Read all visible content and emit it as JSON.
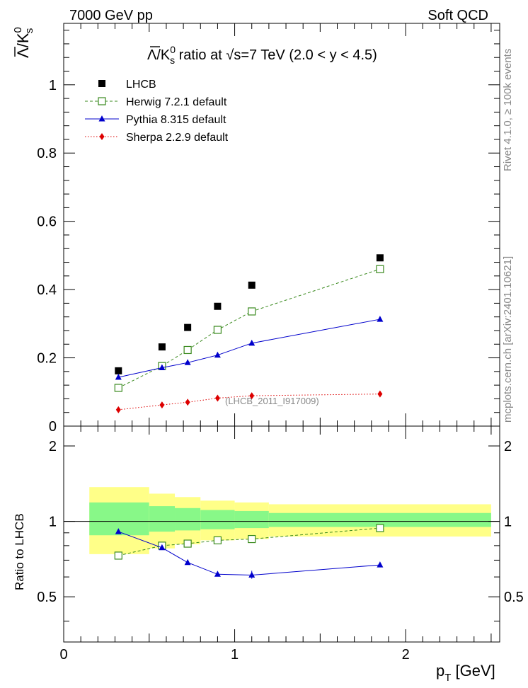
{
  "header": {
    "left": "7000 GeV pp",
    "right": "Soft QCD"
  },
  "side_labels": {
    "rivet": "Rivet 4.1.0, ≥ 100k events",
    "mcplots": "mcplots.cern.ch [arXiv:2401.10621]"
  },
  "analysis_id": "(LHCB_2011_I917009)",
  "chart_data": [
    {
      "type": "scatter",
      "panel": "main",
      "title": "Λ̅/K⁰ₛ ratio at √s=7 TeV (2.0 < y < 4.5)",
      "title_parts": {
        "lambda": "Λ",
        "slash_k": "/K",
        "sup": "0",
        "sub": "s",
        "rest": " ratio at ",
        "sqrt": "√",
        "energy": "s=7 TeV (2.0 < y < 4.5)"
      },
      "ylabel_parts": {
        "lambda": "Λ",
        "slash_k": "/K",
        "sup": "0",
        "sub": "s"
      },
      "xlabel": "",
      "xlim": [
        0,
        2.55
      ],
      "ylim": [
        0,
        1.18
      ],
      "yticks": [
        0,
        0.2,
        0.4,
        0.6,
        0.8,
        1
      ],
      "yticklabels": [
        "0",
        "0.2",
        "0.4",
        "0.6",
        "0.8",
        "1"
      ],
      "x": [
        0.32,
        0.575,
        0.725,
        0.9,
        1.1,
        1.85
      ],
      "series": [
        {
          "name": "LHCB",
          "color": "#000000",
          "marker": "square",
          "line": "none",
          "values": [
            0.162,
            0.232,
            0.289,
            0.351,
            0.413,
            0.493
          ]
        },
        {
          "name": "Herwig 7.2.1 default",
          "color": "#3a8a1e",
          "marker": "open-square",
          "line": "dashed",
          "values": [
            0.112,
            0.176,
            0.223,
            0.282,
            0.336,
            0.46
          ]
        },
        {
          "name": "Pythia 8.315 default",
          "color": "#0000cc",
          "marker": "triangle",
          "line": "solid",
          "values": [
            0.143,
            0.171,
            0.186,
            0.208,
            0.243,
            0.313
          ]
        },
        {
          "name": "Sherpa 2.2.9 default",
          "color": "#dd0000",
          "marker": "diamond",
          "line": "dotted",
          "values": [
            0.048,
            0.062,
            0.07,
            0.082,
            0.089,
            0.094
          ]
        }
      ],
      "legend": "top-left"
    },
    {
      "type": "scatter",
      "panel": "ratio",
      "ylabel": "Ratio to LHCB",
      "xlabel_parts": {
        "p": "p",
        "sub": "T",
        "unit": " [GeV]"
      },
      "xlim": [
        0,
        2.55
      ],
      "ylim": [
        0.33,
        2.4
      ],
      "xticks": [
        0,
        1,
        2
      ],
      "xticklabels": [
        "0",
        "1",
        "2"
      ],
      "yticks": [
        0.5,
        1,
        2
      ],
      "yticklabels": [
        "0.5",
        "1",
        "2"
      ],
      "bands": [
        {
          "x_range": [
            0.15,
            0.5
          ],
          "yellow": [
            0.74,
            1.37
          ],
          "green": [
            0.88,
            1.19
          ]
        },
        {
          "x_range": [
            0.5,
            0.65
          ],
          "yellow": [
            0.78,
            1.29
          ],
          "green": [
            0.91,
            1.15
          ]
        },
        {
          "x_range": [
            0.65,
            0.8
          ],
          "yellow": [
            0.81,
            1.25
          ],
          "green": [
            0.92,
            1.13
          ]
        },
        {
          "x_range": [
            0.8,
            1.0
          ],
          "yellow": [
            0.84,
            1.21
          ],
          "green": [
            0.93,
            1.11
          ]
        },
        {
          "x_range": [
            1.0,
            1.2
          ],
          "yellow": [
            0.85,
            1.19
          ],
          "green": [
            0.94,
            1.1
          ]
        },
        {
          "x_range": [
            1.2,
            2.5
          ],
          "yellow": [
            0.87,
            1.17
          ],
          "green": [
            0.95,
            1.08
          ]
        }
      ],
      "x": [
        0.32,
        0.575,
        0.725,
        0.9,
        1.1,
        1.85
      ],
      "series": [
        {
          "name": "Herwig 7.2.1 default",
          "color": "#3a8a1e",
          "marker": "open-square",
          "line": "dashed",
          "values": [
            0.73,
            0.8,
            0.815,
            0.84,
            0.85,
            0.94
          ]
        },
        {
          "name": "Pythia 8.315 default",
          "color": "#0000cc",
          "marker": "triangle",
          "line": "solid",
          "values": [
            0.91,
            0.785,
            0.685,
            0.615,
            0.61,
            0.67
          ]
        }
      ]
    }
  ]
}
